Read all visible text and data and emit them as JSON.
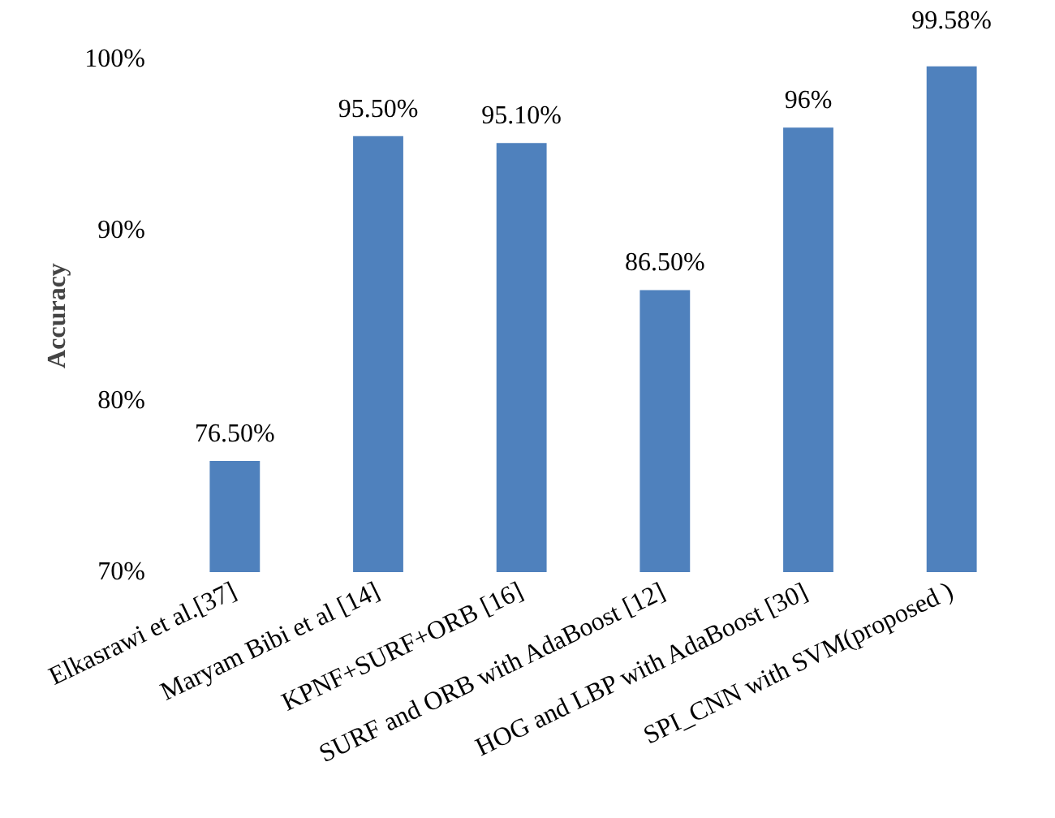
{
  "chart_data": {
    "type": "bar",
    "ylabel": "Accuracy",
    "categories": [
      "Elkasrawi et al.[37]",
      "Maryam Bibi et al [14]",
      "KPNF+SURF+ORB [16]",
      "SURF and ORB with AdaBoost [12]",
      "HOG and LBP with AdaBoost [30]",
      "SPI_CNN with SVM(proposed )"
    ],
    "values": [
      76.5,
      95.5,
      95.1,
      86.5,
      96,
      99.58
    ],
    "value_labels": [
      "76.50%",
      "95.50%",
      "95.10%",
      "86.50%",
      "96%",
      "99.58%"
    ],
    "color": "#4f81bd",
    "ylim": [
      70,
      100
    ],
    "yticks": [
      {
        "value": 70,
        "label": "70%"
      },
      {
        "value": 80,
        "label": "80%"
      },
      {
        "value": 90,
        "label": "90%"
      },
      {
        "value": 100,
        "label": "100%"
      }
    ],
    "grid": false
  }
}
